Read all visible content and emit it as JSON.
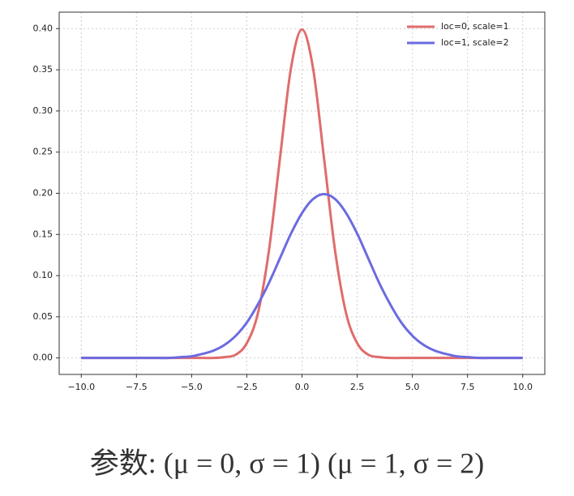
{
  "chart_data": {
    "type": "line",
    "x": [
      -10,
      -9.5,
      -9,
      -8.5,
      -8,
      -7.5,
      -7,
      -6.5,
      -6,
      -5.5,
      -5,
      -4.5,
      -4,
      -3.5,
      -3,
      -2.5,
      -2,
      -1.5,
      -1,
      -0.5,
      0,
      0.5,
      1,
      1.5,
      2,
      2.5,
      3,
      3.5,
      4,
      4.5,
      5,
      5.5,
      6,
      6.5,
      7,
      7.5,
      8,
      8.5,
      9,
      9.5,
      10
    ],
    "series": [
      {
        "name": "loc=0, scale=1",
        "color": "#e06c6c",
        "values": [
          0,
          0,
          0,
          0,
          0,
          0,
          0,
          0,
          0,
          0,
          0,
          0,
          0,
          0.001,
          0.004,
          0.018,
          0.054,
          0.13,
          0.242,
          0.352,
          0.399,
          0.352,
          0.242,
          0.13,
          0.054,
          0.018,
          0.004,
          0.001,
          0,
          0,
          0,
          0,
          0,
          0,
          0,
          0,
          0,
          0,
          0,
          0,
          0
        ]
      },
      {
        "name": "loc=1, scale=2",
        "color": "#6b6be0",
        "values": [
          0,
          0,
          0,
          0,
          0,
          0,
          0,
          0,
          0,
          0.001,
          0.002,
          0.005,
          0.009,
          0.016,
          0.027,
          0.043,
          0.065,
          0.091,
          0.121,
          0.151,
          0.176,
          0.193,
          0.199,
          0.193,
          0.176,
          0.151,
          0.121,
          0.091,
          0.065,
          0.043,
          0.027,
          0.016,
          0.009,
          0.005,
          0.002,
          0.001,
          0,
          0,
          0,
          0,
          0
        ]
      }
    ],
    "xlim": [
      -11,
      11
    ],
    "ylim": [
      -0.02,
      0.42
    ],
    "xticks": [
      {
        "value": -10,
        "label": "−10.0"
      },
      {
        "value": -7.5,
        "label": "−7.5"
      },
      {
        "value": -5,
        "label": "−5.0"
      },
      {
        "value": -2.5,
        "label": "−2.5"
      },
      {
        "value": 0,
        "label": "0.0"
      },
      {
        "value": 2.5,
        "label": "2.5"
      },
      {
        "value": 5,
        "label": "5.0"
      },
      {
        "value": 7.5,
        "label": "7.5"
      },
      {
        "value": 10,
        "label": "10.0"
      }
    ],
    "yticks": [
      {
        "value": 0,
        "label": "0.00"
      },
      {
        "value": 0.05,
        "label": "0.05"
      },
      {
        "value": 0.1,
        "label": "0.10"
      },
      {
        "value": 0.15,
        "label": "0.15"
      },
      {
        "value": 0.2,
        "label": "0.20"
      },
      {
        "value": 0.25,
        "label": "0.25"
      },
      {
        "value": 0.3,
        "label": "0.30"
      },
      {
        "value": 0.35,
        "label": "0.35"
      },
      {
        "value": 0.4,
        "label": "0.40"
      }
    ],
    "grid": true,
    "legend": "upper right",
    "caption": "参数: (μ = 0, σ = 1)    (μ = 1, σ = 2)"
  }
}
